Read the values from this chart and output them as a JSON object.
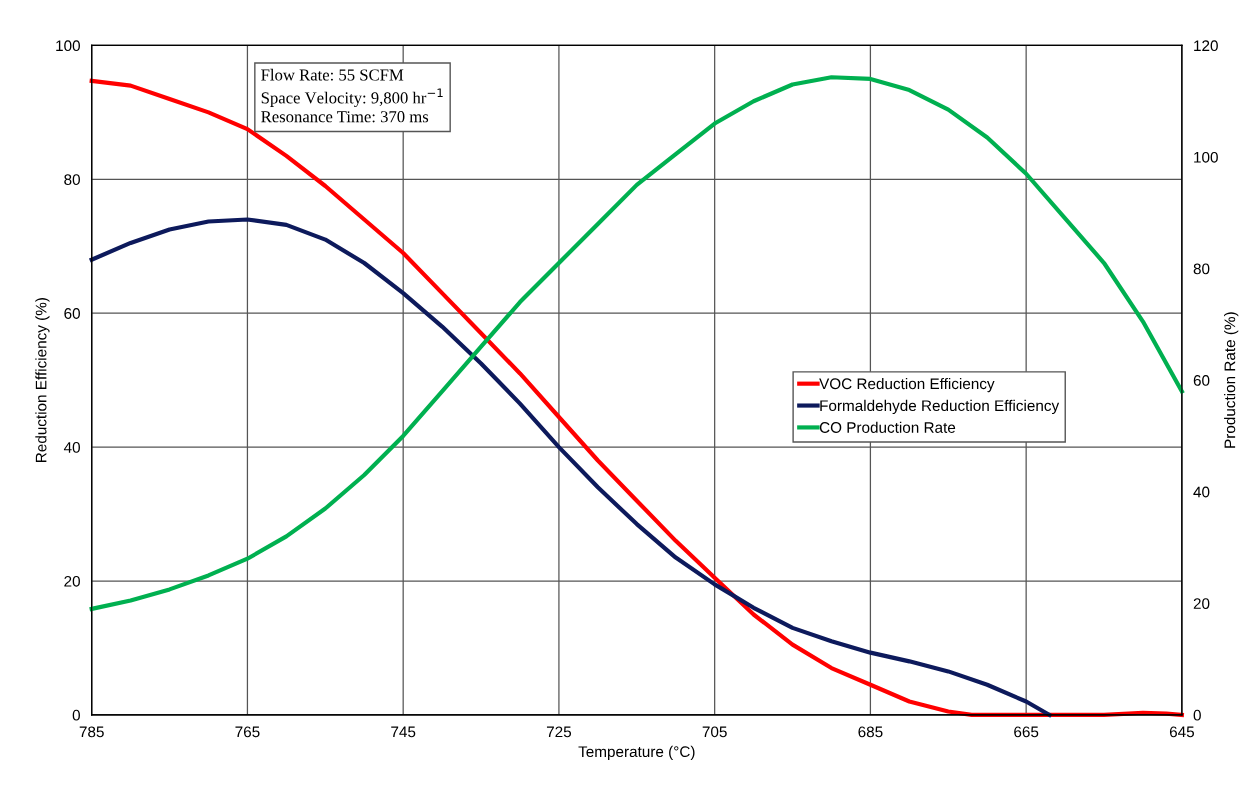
{
  "chart_data": {
    "type": "line",
    "xlabel": "Temperature (°C)",
    "ylabel": "Reduction Efficiency (%)",
    "y2label": "Production Rate (%)",
    "xlim": [
      785,
      645
    ],
    "xticks": [
      785,
      765,
      745,
      725,
      705,
      685,
      665,
      645
    ],
    "ylim": [
      0,
      100
    ],
    "yticks": [
      0,
      20,
      40,
      60,
      80,
      100
    ],
    "y2lim": [
      0,
      120
    ],
    "y2ticks": [
      0,
      20,
      40,
      60,
      80,
      100,
      120
    ],
    "grid": true,
    "legend": "right",
    "marker": "none",
    "line_style": "solid",
    "annotations": [
      "Flow Rate: 55 SCFM\nSpace Velocity: 9,800 hr$^{−1}$\nResonance Time: 370 ms"
    ],
    "series": [
      {
        "name": "VOC Reduction Efficiency",
        "color": "#ff0000",
        "x": [
          785,
          780,
          775,
          770,
          765,
          760,
          755,
          750,
          745,
          740,
          735,
          730,
          725,
          720,
          715,
          710,
          705,
          700,
          695,
          690,
          685,
          680,
          675,
          672,
          665,
          655,
          650,
          647,
          645
        ],
        "values": [
          94.7,
          94,
          92,
          90,
          87.5,
          83.5,
          79,
          74,
          69,
          63,
          57,
          51,
          44.5,
          38,
          32,
          26,
          20.5,
          15,
          10.5,
          7,
          4.5,
          2,
          0.5,
          0,
          0,
          0,
          0.3,
          0.2,
          0
        ]
      },
      {
        "name": "Formaldehyde Reduction Efficiency",
        "color": "#0d1a5c",
        "x": [
          785,
          780,
          775,
          770,
          765,
          760,
          755,
          750,
          745,
          740,
          735,
          730,
          725,
          720,
          715,
          710,
          705,
          700,
          695,
          690,
          685,
          680,
          675,
          670,
          665,
          662
        ],
        "values": [
          68,
          70.5,
          72.5,
          73.7,
          74,
          73.2,
          71,
          67.5,
          63,
          58,
          52.5,
          46.5,
          40,
          34,
          28.5,
          23.5,
          19.5,
          16,
          13,
          11,
          9.3,
          8,
          6.5,
          4.5,
          2,
          0
        ]
      },
      {
        "name": "CO Production Rate",
        "color": "#00b050",
        "axis": "y2",
        "x": [
          785,
          780,
          775,
          770,
          765,
          760,
          755,
          750,
          745,
          740,
          735,
          730,
          725,
          720,
          715,
          710,
          705,
          700,
          695,
          690,
          685,
          680,
          675,
          670,
          665,
          660,
          655,
          650,
          645
        ],
        "values": [
          19,
          20.5,
          22.5,
          25,
          28,
          32,
          37,
          43,
          50,
          58,
          66,
          74,
          81,
          88,
          95,
          100.5,
          106,
          110,
          113,
          114.3,
          114,
          112,
          108.5,
          103.5,
          97,
          89,
          81,
          70.5,
          58
        ]
      }
    ]
  }
}
